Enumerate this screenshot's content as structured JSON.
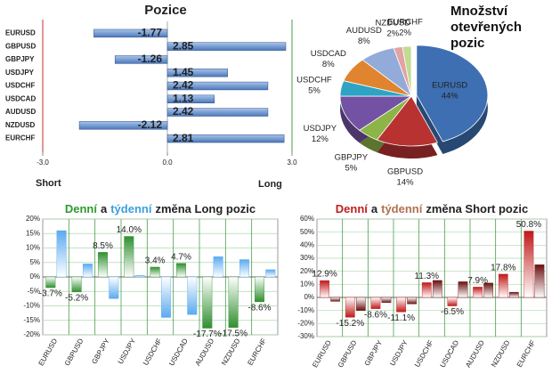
{
  "chart_data": [
    {
      "type": "hbar",
      "title": "Pozice",
      "categories": [
        "EURUSD",
        "GBPUSD",
        "GBPJPY",
        "USDJPY",
        "USDCHF",
        "USDCAD",
        "AUDUSD",
        "NZDUSD",
        "EURCHF"
      ],
      "values": [
        -1.77,
        2.85,
        -1.26,
        1.45,
        2.42,
        1.13,
        2.42,
        -2.12,
        2.81
      ],
      "color": "#4a78bb",
      "xlim": [
        -3,
        3
      ],
      "xticks": [
        {
          "value": -3,
          "label": "-3.0"
        },
        {
          "value": 0,
          "label": "0.0"
        },
        {
          "value": 3,
          "label": "3.0"
        }
      ],
      "x_axis_labels": [
        "Short",
        "Long"
      ]
    },
    {
      "type": "pie",
      "title": "Množství otevřených pozic",
      "categories": [
        "EURUSD",
        "GBPUSD",
        "GBPJPY",
        "USDJPY",
        "USDCHF",
        "USDCAD",
        "AUDUSD",
        "NZDUSD",
        "EURCHF"
      ],
      "values": [
        44,
        14,
        5,
        12,
        5,
        8,
        8,
        2,
        2
      ],
      "value_labels": [
        "44%",
        "14%",
        "5%",
        "12%",
        "5%",
        "8%",
        "8%",
        "2%",
        "2%"
      ],
      "colors": [
        "#3d6fb2",
        "#b83232",
        "#8db446",
        "#7352a3",
        "#2fa3c4",
        "#e0842f",
        "#93abd9",
        "#e3a3a3",
        "#c2da93"
      ]
    },
    {
      "type": "bar",
      "title": [
        {
          "text": "Denní",
          "color": "#2e9a2e"
        },
        {
          "text": "a",
          "color": "#222222"
        },
        {
          "text": "týdenní",
          "color": "#3aa0e0"
        },
        {
          "text": "změna Long pozic",
          "color": "#222222"
        }
      ],
      "categories": [
        "EURUSD",
        "GBPUSD",
        "GBPJPY",
        "USDJPY",
        "USDCHF",
        "USDCAD",
        "AUDUSD",
        "NZDUSD",
        "EURCHF"
      ],
      "series": [
        {
          "color": "#2f8f2f",
          "values": [
            -3.7,
            -5.2,
            8.5,
            14.0,
            3.4,
            4.7,
            -17.7,
            -17.5,
            -8.6
          ],
          "value_labels": [
            "-3.7%",
            "-5.2%",
            "8.5%",
            "14.0%",
            "3.4%",
            "4.7%",
            "-17.7%",
            "-17.5%",
            "-8.6%"
          ]
        },
        {
          "color": "#5aaaf0",
          "values": [
            16,
            4.5,
            -7.5,
            0.5,
            -14,
            -13,
            7,
            6,
            2.5
          ]
        }
      ],
      "ylim": [
        -20,
        20
      ],
      "yticks": [
        {
          "value": -20,
          "label": "-20%"
        },
        {
          "value": -15,
          "label": "-15%"
        },
        {
          "value": -10,
          "label": "-10%"
        },
        {
          "value": -5,
          "label": "-5%"
        },
        {
          "value": 0,
          "label": "0%"
        },
        {
          "value": 5,
          "label": "5%"
        },
        {
          "value": 10,
          "label": "10%"
        },
        {
          "value": 15,
          "label": "15%"
        },
        {
          "value": 20,
          "label": "20%"
        }
      ],
      "tick_color": "#2e9a2e",
      "grid": true
    },
    {
      "type": "bar",
      "title": [
        {
          "text": "Denní",
          "color": "#c02020"
        },
        {
          "text": "a",
          "color": "#222222"
        },
        {
          "text": "týdenní",
          "color": "#b07050"
        },
        {
          "text": "změna Short pozic",
          "color": "#222222"
        }
      ],
      "categories": [
        "EURUSD",
        "GBPUSD",
        "GBPJPY",
        "USDJPY",
        "USDCHF",
        "USDCAD",
        "AUDUSD",
        "NZDUSD",
        "EURCHF"
      ],
      "series": [
        {
          "color": "#c01818",
          "values": [
            12.9,
            -15.2,
            -8.6,
            -11.1,
            11.3,
            -6.5,
            7.9,
            17.8,
            50.8
          ],
          "value_labels": [
            "12.9%",
            "-15.2%",
            "-8.6%",
            "-11.1%",
            "11.3%",
            "-6.5%",
            "7.9%",
            "17.8%",
            "50.8%"
          ]
        },
        {
          "color": "#6a1010",
          "values": [
            -3,
            -10,
            -4,
            -5,
            13,
            12,
            11,
            4,
            25
          ]
        }
      ],
      "ylim": [
        -30,
        60
      ],
      "yticks": [
        {
          "value": -30,
          "label": "-30%"
        },
        {
          "value": -20,
          "label": "-20%"
        },
        {
          "value": -10,
          "label": "-10%"
        },
        {
          "value": 0,
          "label": "0%"
        },
        {
          "value": 10,
          "label": "10%"
        },
        {
          "value": 20,
          "label": "20%"
        },
        {
          "value": 30,
          "label": "30%"
        },
        {
          "value": 40,
          "label": "40%"
        },
        {
          "value": 50,
          "label": "50%"
        },
        {
          "value": 60,
          "label": "60%"
        }
      ],
      "tick_color": "#c02020",
      "grid": true
    }
  ]
}
